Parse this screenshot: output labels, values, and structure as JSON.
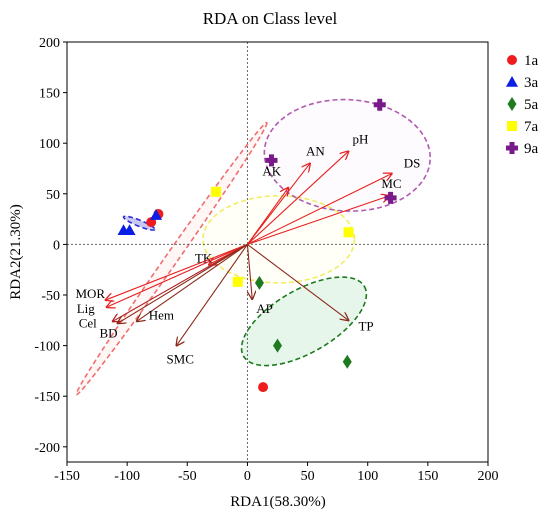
{
  "chart_data": {
    "type": "scatter",
    "title": "RDA on Class level",
    "xlabel": "RDA1(58.30%)",
    "ylabel": "RDA2(21.30%)",
    "xlim": [
      -150,
      200
    ],
    "ylim": [
      -215,
      200
    ],
    "xticks": [
      -150,
      -100,
      -50,
      0,
      50,
      100,
      150,
      200
    ],
    "yticks": [
      -200,
      -150,
      -100,
      -50,
      0,
      50,
      100,
      150,
      200
    ],
    "grid": false,
    "legend_position": "right",
    "series": [
      {
        "name": "1a",
        "marker": "circle",
        "color": "#ee1c1c",
        "points": [
          [
            -80,
            22
          ],
          [
            -74,
            30
          ],
          [
            13,
            -141
          ]
        ]
      },
      {
        "name": "3a",
        "marker": "triangle",
        "color": "#0a1ee6",
        "points": [
          [
            -103,
            14
          ],
          [
            -98,
            14
          ],
          [
            -76,
            29
          ]
        ]
      },
      {
        "name": "5a",
        "marker": "diamond",
        "color": "#1e7a1e",
        "points": [
          [
            10,
            -38
          ],
          [
            25,
            -100
          ],
          [
            83,
            -116
          ]
        ]
      },
      {
        "name": "7a",
        "marker": "square",
        "color": "#ffff00",
        "points": [
          [
            -26,
            52
          ],
          [
            -8,
            -37
          ],
          [
            84,
            12
          ]
        ]
      },
      {
        "name": "9a",
        "marker": "plus",
        "color": "#7a1a8a",
        "points": [
          [
            20,
            83
          ],
          [
            110,
            138
          ],
          [
            119,
            46
          ]
        ]
      }
    ],
    "vectors": [
      {
        "label": "AN",
        "x": 52,
        "y": 80,
        "color": "#e82020"
      },
      {
        "label": "pH",
        "x": 84,
        "y": 92,
        "color": "#e82020"
      },
      {
        "label": "AK",
        "x": 34,
        "y": 56,
        "color": "#e82020"
      },
      {
        "label": "DS",
        "x": 120,
        "y": 70,
        "color": "#e82020"
      },
      {
        "label": "MC",
        "x": 118,
        "y": 48,
        "color": "#e82020"
      },
      {
        "label": "TK",
        "x": -32,
        "y": -20,
        "color": "#e82020"
      },
      {
        "label": "MOR",
        "x": -118,
        "y": -55,
        "color": "#e82020"
      },
      {
        "label": "Lig",
        "x": -117,
        "y": -62,
        "color": "#e82020"
      },
      {
        "label": "Cel",
        "x": -112,
        "y": -76,
        "color": "#b02020"
      },
      {
        "label": "BD",
        "x": -108,
        "y": -78,
        "color": "#8b2a1a"
      },
      {
        "label": "Hem",
        "x": -92,
        "y": -76,
        "color": "#8b2a1a"
      },
      {
        "label": "SMC",
        "x": -59,
        "y": -100,
        "color": "#8b2a1a"
      },
      {
        "label": "AP",
        "x": 4,
        "y": -54,
        "color": "#8b2a1a"
      },
      {
        "label": "TP",
        "x": 84,
        "y": -75,
        "color": "#8b2a1a"
      }
    ],
    "ellipses": [
      {
        "group": "1a",
        "cx": -63,
        "cy": -14,
        "rx": 138,
        "ry": 6,
        "angle": -55,
        "stroke": "#f07070",
        "fill": "rgba(255,210,210,0.2)"
      },
      {
        "group": "3a",
        "cx": -90,
        "cy": 21,
        "rx": 14,
        "ry": 3,
        "angle": 22,
        "stroke": "#3030d0",
        "fill": "rgba(120,120,230,0.4)"
      },
      {
        "group": "5a",
        "cx": 47,
        "cy": -76,
        "rx": 58,
        "ry": 31,
        "angle": -30,
        "stroke": "#1e7a1e",
        "fill": "rgba(160,220,170,0.25)"
      },
      {
        "group": "7a",
        "cx": 26,
        "cy": 5,
        "rx": 63,
        "ry": 43,
        "angle": 0,
        "stroke": "#f0ee60",
        "fill": "rgba(255,255,160,0.08)"
      },
      {
        "group": "9a",
        "cx": 83,
        "cy": 88,
        "rx": 69,
        "ry": 55,
        "angle": 3,
        "stroke": "#b05ab0",
        "fill": "rgba(230,200,230,0.08)"
      }
    ]
  }
}
